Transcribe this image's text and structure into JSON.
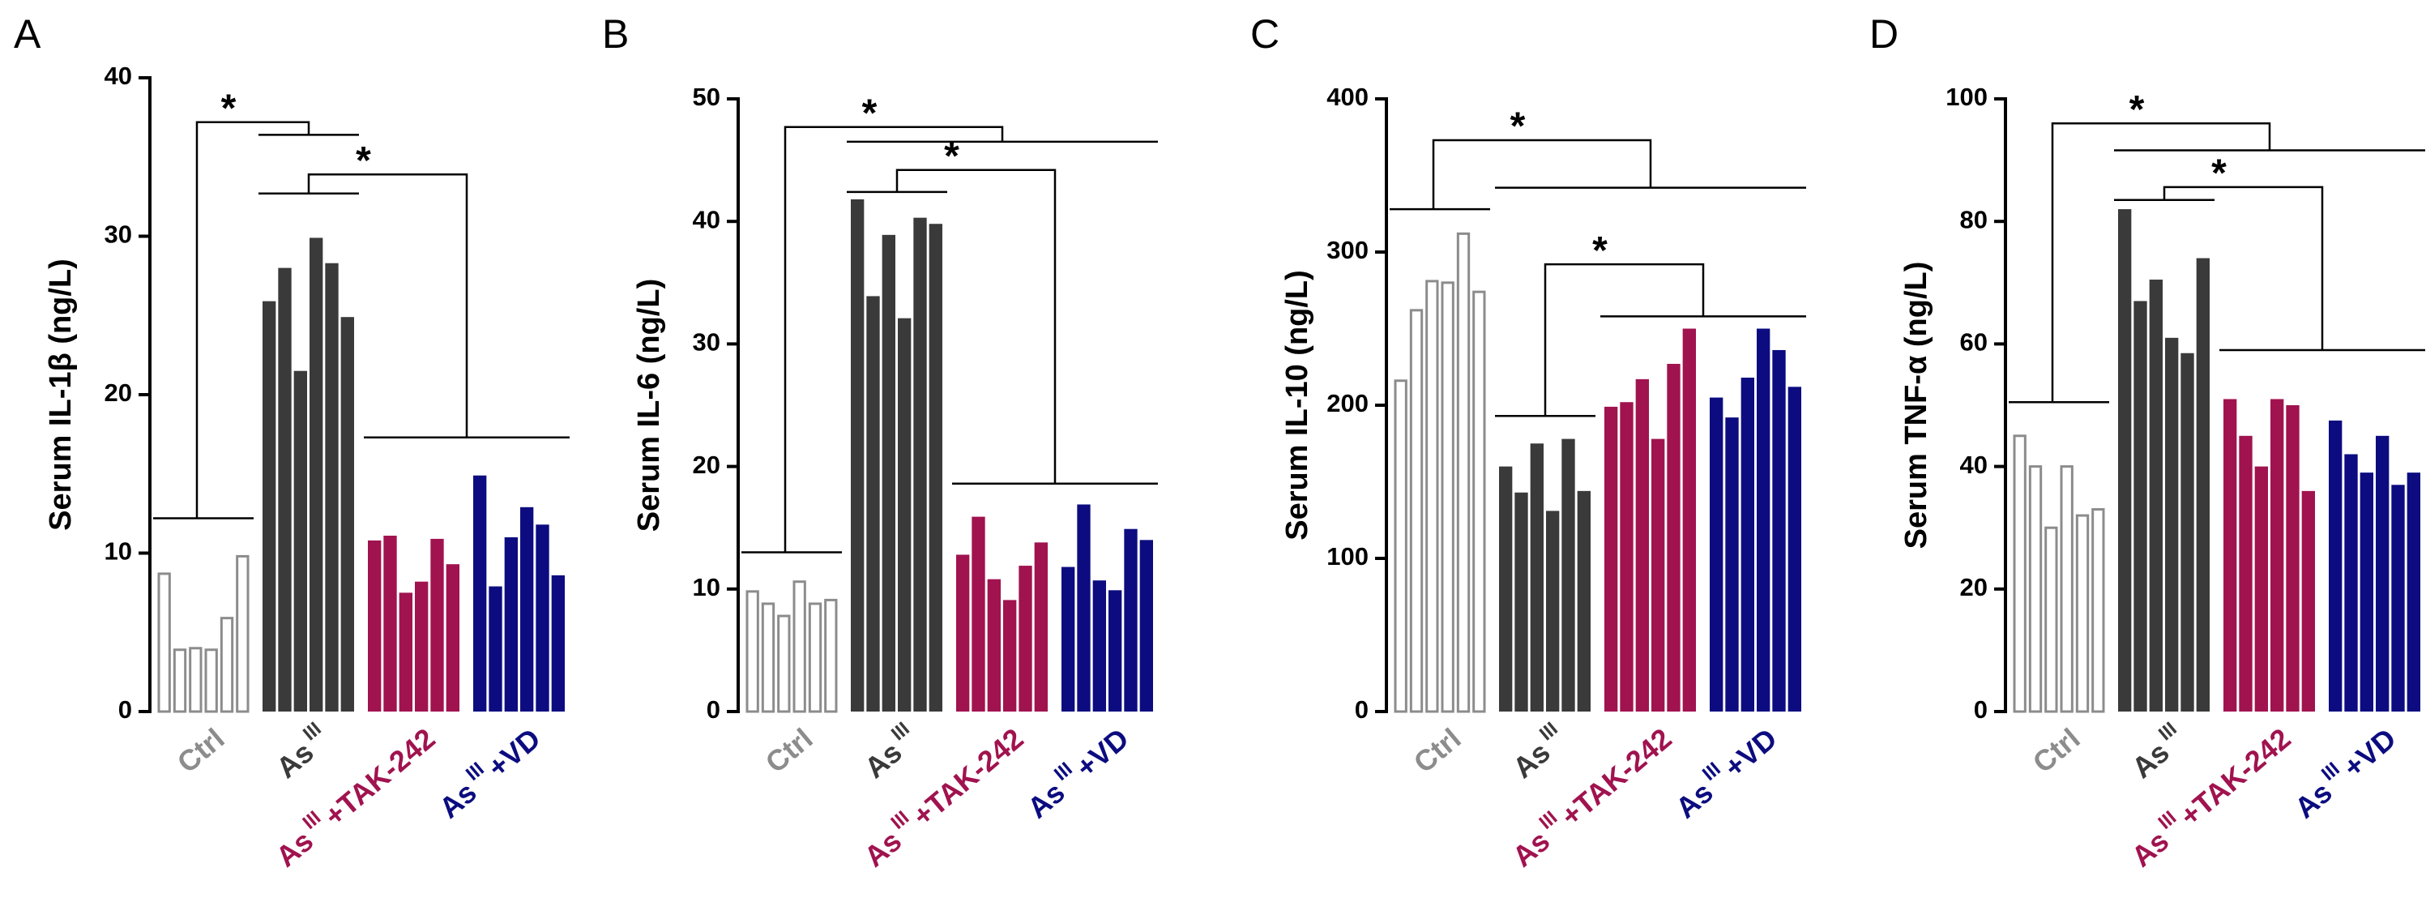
{
  "chart_data": [
    {
      "type": "bar",
      "panel": "A",
      "ylabel": "Serum IL-1β (ng/L)",
      "ylim": [
        0,
        40
      ],
      "yticks": [
        0,
        10,
        20,
        30,
        40
      ],
      "annotations": [
        "*",
        "*"
      ],
      "series": [
        {
          "name": "Ctrl",
          "color": "#8c8c8c",
          "style": "outline",
          "values": [
            8.7,
            3.9,
            4.0,
            3.9,
            5.9,
            9.8
          ]
        },
        {
          "name": "As",
          "name_sup": "III",
          "color": "#3a3a3a",
          "values": [
            25.9,
            28.0,
            21.5,
            29.9,
            28.3,
            24.9
          ]
        },
        {
          "name": "As",
          "name_sup": "III",
          "name_suffix": "+TAK-242",
          "color": "#a0134f",
          "values": [
            10.8,
            11.1,
            7.5,
            8.2,
            10.9,
            9.3
          ]
        },
        {
          "name": "As",
          "name_sup": "III",
          "name_suffix": "+VD",
          "color": "#0c0c80",
          "values": [
            14.9,
            7.9,
            11.0,
            12.9,
            11.8,
            8.6
          ]
        }
      ]
    },
    {
      "type": "bar",
      "panel": "B",
      "ylabel": "Serum IL-6 (ng/L)",
      "ylim": [
        0,
        50
      ],
      "yticks": [
        0,
        10,
        20,
        30,
        40,
        50
      ],
      "annotations": [
        "*",
        "*"
      ],
      "series": [
        {
          "name": "Ctrl",
          "color": "#8c8c8c",
          "style": "outline",
          "values": [
            9.8,
            8.8,
            7.8,
            10.6,
            8.8,
            9.1
          ]
        },
        {
          "name": "As",
          "name_sup": "III",
          "color": "#3a3a3a",
          "values": [
            41.8,
            33.9,
            38.9,
            32.1,
            40.3,
            39.8
          ]
        },
        {
          "name": "As",
          "name_sup": "III",
          "name_suffix": "+TAK-242",
          "color": "#a0134f",
          "values": [
            12.8,
            15.9,
            10.8,
            9.1,
            11.9,
            13.8
          ]
        },
        {
          "name": "As",
          "name_sup": "III",
          "name_suffix": "+VD",
          "color": "#0c0c80",
          "values": [
            11.8,
            16.9,
            10.7,
            9.9,
            14.9,
            14.0
          ]
        }
      ]
    },
    {
      "type": "bar",
      "panel": "C",
      "ylabel": "Serum IL-10 (ng/L)",
      "ylim": [
        0,
        400
      ],
      "yticks": [
        0,
        100,
        200,
        300,
        400
      ],
      "annotations": [
        "*",
        "*"
      ],
      "series": [
        {
          "name": "Ctrl",
          "color": "#8c8c8c",
          "style": "outline",
          "values": [
            216,
            262,
            281,
            280,
            312,
            274
          ]
        },
        {
          "name": "As",
          "name_sup": "III",
          "color": "#3a3a3a",
          "values": [
            160,
            143,
            175,
            131,
            178,
            144
          ]
        },
        {
          "name": "As",
          "name_sup": "III",
          "name_suffix": "+TAK-242",
          "color": "#a0134f",
          "values": [
            199,
            202,
            217,
            178,
            227,
            250
          ]
        },
        {
          "name": "As",
          "name_sup": "III",
          "name_suffix": "+VD",
          "color": "#0c0c80",
          "values": [
            205,
            192,
            218,
            250,
            236,
            212
          ]
        }
      ]
    },
    {
      "type": "bar",
      "panel": "D",
      "ylabel": "Serum TNF-α (ng/L)",
      "ylim": [
        0,
        100
      ],
      "yticks": [
        0,
        20,
        40,
        60,
        80,
        100
      ],
      "annotations": [
        "*",
        "*"
      ],
      "series": [
        {
          "name": "Ctrl",
          "color": "#8c8c8c",
          "style": "outline",
          "values": [
            45,
            40,
            30,
            40,
            32,
            33
          ]
        },
        {
          "name": "As",
          "name_sup": "III",
          "color": "#3a3a3a",
          "values": [
            82,
            67,
            70.5,
            61,
            58.5,
            74
          ]
        },
        {
          "name": "As",
          "name_sup": "III",
          "name_suffix": "+TAK-242",
          "color": "#a0134f",
          "values": [
            51,
            45,
            40,
            51,
            50,
            36
          ]
        },
        {
          "name": "As",
          "name_sup": "III",
          "name_suffix": "+VD",
          "color": "#0c0c80",
          "values": [
            47.5,
            42,
            39,
            45,
            37,
            39
          ]
        }
      ]
    }
  ]
}
